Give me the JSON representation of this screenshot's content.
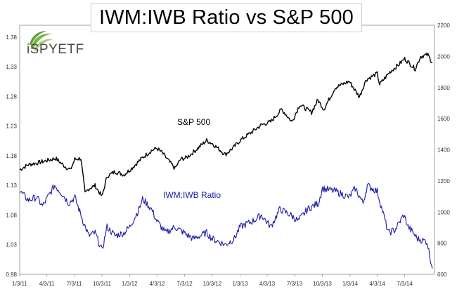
{
  "title": "IWM:IWB Ratio vs S&P 500",
  "logo_text": "iSPYETF",
  "colors": {
    "sp500": "#000000",
    "ratio": "#1a1aa6",
    "frame": "#a0a0a0",
    "logo_green": "#7ab648"
  },
  "chart_data": {
    "type": "line",
    "title": "IWM:IWB Ratio vs S&P 500",
    "x_tick_labels": [
      "1/3/11",
      "4/3/11",
      "7/3/11",
      "10/3/11",
      "1/3/12",
      "4/3/12",
      "7/3/12",
      "10/3/12",
      "1/3/13",
      "4/3/13",
      "7/3/13",
      "10/3/13",
      "1/3/14",
      "4/3/14",
      "7/3/14"
    ],
    "left_axis": {
      "ticks": [
        "0.98",
        "1.03",
        "1.08",
        "1.13",
        "1.18",
        "1.23",
        "1.28",
        "1.33",
        "1.38"
      ],
      "ylim": [
        0.98,
        1.4
      ]
    },
    "right_axis": {
      "ticks": [
        "600",
        "800",
        "1000",
        "1200",
        "1400",
        "1600",
        "1800",
        "2000",
        "2200"
      ],
      "ylim": [
        600,
        2200
      ]
    },
    "legend": "none",
    "grid": false,
    "series": [
      {
        "name": "S&P 500",
        "axis": "right",
        "x": [
          "2011-01-03",
          "2011-02-01",
          "2011-03-01",
          "2011-04-01",
          "2011-05-02",
          "2011-06-01",
          "2011-06-20",
          "2011-07-05",
          "2011-07-25",
          "2011-08-08",
          "2011-08-20",
          "2011-09-10",
          "2011-10-03",
          "2011-10-20",
          "2011-11-15",
          "2011-12-15",
          "2012-01-03",
          "2012-02-15",
          "2012-03-15",
          "2012-04-02",
          "2012-04-20",
          "2012-05-15",
          "2012-06-01",
          "2012-06-20",
          "2012-07-10",
          "2012-08-10",
          "2012-09-14",
          "2012-10-03",
          "2012-11-15",
          "2012-12-15",
          "2013-01-03",
          "2013-02-15",
          "2013-03-15",
          "2013-04-15",
          "2013-05-21",
          "2013-06-24",
          "2013-07-20",
          "2013-08-28",
          "2013-09-18",
          "2013-10-08",
          "2013-11-15",
          "2013-12-31",
          "2014-02-03",
          "2014-02-25",
          "2014-04-03",
          "2014-04-11",
          "2014-05-15",
          "2014-06-15",
          "2014-07-03",
          "2014-08-07",
          "2014-08-25",
          "2014-09-18",
          "2014-10-03"
        ],
        "y": [
          1272,
          1305,
          1315,
          1330,
          1345,
          1295,
          1270,
          1340,
          1345,
          1120,
          1150,
          1170,
          1100,
          1230,
          1260,
          1240,
          1270,
          1350,
          1395,
          1410,
          1380,
          1320,
          1280,
          1340,
          1350,
          1400,
          1460,
          1440,
          1370,
          1420,
          1460,
          1520,
          1560,
          1580,
          1660,
          1580,
          1690,
          1640,
          1720,
          1660,
          1800,
          1840,
          1740,
          1850,
          1890,
          1820,
          1900,
          1950,
          1985,
          1920,
          2000,
          2010,
          1960
        ]
      },
      {
        "name": "IWM:IWB Ratio",
        "axis": "left",
        "x": [
          "2011-01-03",
          "2011-02-01",
          "2011-02-28",
          "2011-03-20",
          "2011-04-29",
          "2011-05-25",
          "2011-06-15",
          "2011-07-05",
          "2011-08-01",
          "2011-08-20",
          "2011-09-10",
          "2011-10-03",
          "2011-10-20",
          "2011-11-15",
          "2011-12-15",
          "2012-01-03",
          "2012-02-03",
          "2012-02-15",
          "2012-03-15",
          "2012-04-02",
          "2012-05-01",
          "2012-06-01",
          "2012-07-01",
          "2012-08-01",
          "2012-09-14",
          "2012-10-03",
          "2012-11-15",
          "2012-12-15",
          "2013-01-03",
          "2013-02-15",
          "2013-03-15",
          "2013-04-15",
          "2013-05-15",
          "2013-06-20",
          "2013-07-15",
          "2013-08-15",
          "2013-09-20",
          "2013-10-03",
          "2013-11-15",
          "2013-12-31",
          "2014-01-20",
          "2014-02-15",
          "2014-03-01",
          "2014-04-03",
          "2014-05-10",
          "2014-06-01",
          "2014-06-30",
          "2014-07-15",
          "2014-08-15",
          "2014-09-15",
          "2014-10-03"
        ],
        "y": [
          1.12,
          1.105,
          1.11,
          1.095,
          1.13,
          1.115,
          1.1,
          1.11,
          1.07,
          1.045,
          1.05,
          1.02,
          1.06,
          1.045,
          1.05,
          1.06,
          1.09,
          1.107,
          1.09,
          1.07,
          1.05,
          1.06,
          1.05,
          1.04,
          1.05,
          1.04,
          1.03,
          1.04,
          1.06,
          1.07,
          1.08,
          1.06,
          1.09,
          1.08,
          1.07,
          1.09,
          1.1,
          1.125,
          1.12,
          1.11,
          1.125,
          1.1,
          1.13,
          1.12,
          1.05,
          1.055,
          1.08,
          1.06,
          1.04,
          1.035,
          0.99
        ]
      }
    ],
    "annotations": [
      {
        "text": "S&P 500",
        "series": "S&P 500"
      },
      {
        "text": "IWM:IWB Ratio",
        "series": "IWM:IWB Ratio"
      }
    ]
  }
}
